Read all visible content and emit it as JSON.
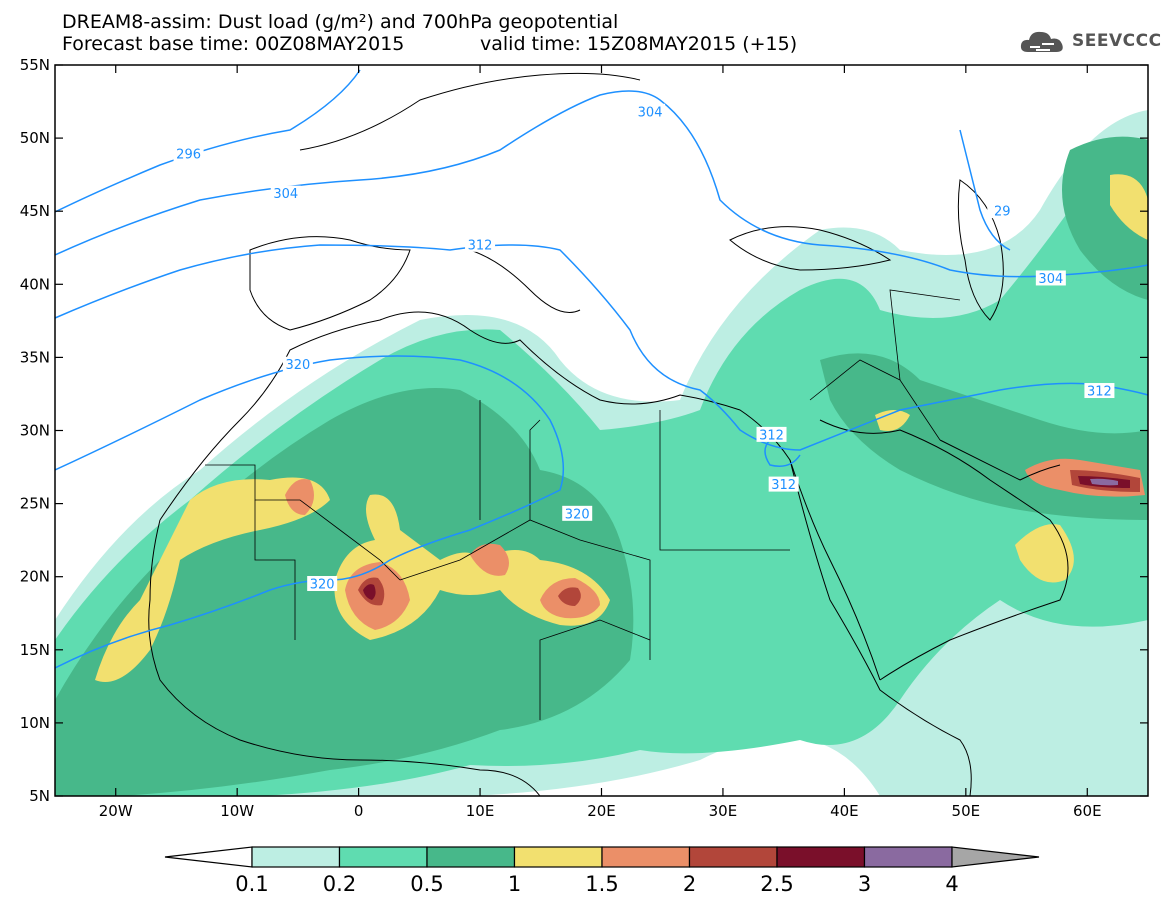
{
  "header": {
    "title_line1": "DREAM8-assim: Dust load (g/m²) and 700hPa geopotential",
    "title_line2": "Forecast base time: 00Z08MAY2015",
    "title_line2b": "valid time: 15Z08MAY2015 (+15)",
    "logo_text": "SEEVCCC",
    "logo_icon": "cloud-logo-icon"
  },
  "map": {
    "lon_range": [
      -25,
      65
    ],
    "lat_range": [
      5,
      55
    ],
    "lat_ticks": [
      {
        "lat": 55,
        "label": "55N"
      },
      {
        "lat": 50,
        "label": "50N"
      },
      {
        "lat": 45,
        "label": "45N"
      },
      {
        "lat": 40,
        "label": "40N"
      },
      {
        "lat": 35,
        "label": "35N"
      },
      {
        "lat": 30,
        "label": "30N"
      },
      {
        "lat": 25,
        "label": "25N"
      },
      {
        "lat": 20,
        "label": "20N"
      },
      {
        "lat": 15,
        "label": "15N"
      },
      {
        "lat": 10,
        "label": "10N"
      },
      {
        "lat": 5,
        "label": "5N"
      }
    ],
    "lon_ticks": [
      {
        "lon": -20,
        "label": "20W"
      },
      {
        "lon": -10,
        "label": "10W"
      },
      {
        "lon": 0,
        "label": "0"
      },
      {
        "lon": 10,
        "label": "10E"
      },
      {
        "lon": 20,
        "label": "20E"
      },
      {
        "lon": 30,
        "label": "30E"
      },
      {
        "lon": 40,
        "label": "40E"
      },
      {
        "lon": 50,
        "label": "50E"
      },
      {
        "lon": 60,
        "label": "60E"
      }
    ],
    "contour_color": "#1e90ff",
    "contour_labels": [
      {
        "lon": -14,
        "lat": 48.9,
        "text": "296"
      },
      {
        "lon": -6,
        "lat": 46.2,
        "text": "304"
      },
      {
        "lon": 24,
        "lat": 51.8,
        "text": "304"
      },
      {
        "lon": 10,
        "lat": 42.7,
        "text": "312"
      },
      {
        "lon": -5,
        "lat": 34.5,
        "text": "320"
      },
      {
        "lon": 18,
        "lat": 24.3,
        "text": "320"
      },
      {
        "lon": -3,
        "lat": 19.5,
        "text": "320"
      },
      {
        "lon": 34,
        "lat": 29.7,
        "text": "312"
      },
      {
        "lon": 35,
        "lat": 26.3,
        "text": "312"
      },
      {
        "lon": 57,
        "lat": 40.4,
        "text": "304"
      },
      {
        "lon": 61,
        "lat": 32.7,
        "text": "312"
      },
      {
        "lon": 53,
        "lat": 45.0,
        "text": "29"
      }
    ]
  },
  "colorbar": {
    "levels": [
      "0.1",
      "0.2",
      "0.5",
      "1",
      "1.5",
      "2",
      "2.5",
      "3",
      "4"
    ],
    "colors": [
      "#ffffff",
      "#bdeee3",
      "#5fdcb0",
      "#47b88a",
      "#f2e06f",
      "#eb8f68",
      "#b2463a",
      "#7a0f2a",
      "#8a6aa0",
      "#a6a6a6"
    ]
  }
}
